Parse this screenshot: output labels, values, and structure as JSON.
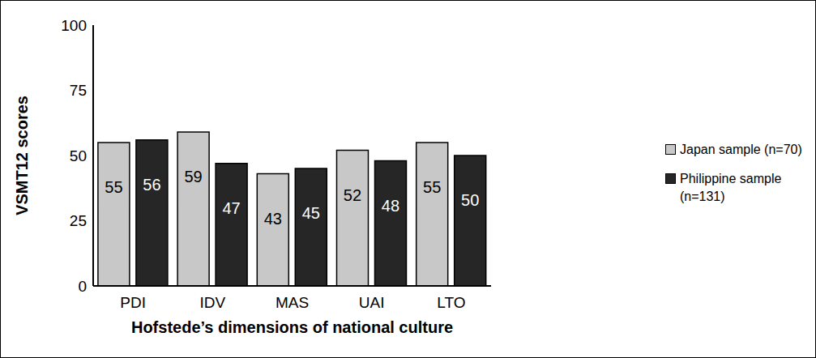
{
  "chart_data": {
    "type": "bar",
    "x_label": "Hofstede’s dimensions of national culture",
    "y_label": "VSMT12 scores",
    "categories": [
      "PDI",
      "IDV",
      "MAS",
      "UAI",
      "LTO"
    ],
    "series": [
      {
        "name": "Japan sample (n=70)",
        "color": "#c8c8c8",
        "values": [
          55,
          59,
          43,
          52,
          55
        ]
      },
      {
        "name": "Philippine sample (n=131)",
        "color": "#262626",
        "values": [
          56,
          47,
          45,
          48,
          50
        ]
      }
    ],
    "ylim": [
      0,
      100
    ],
    "yticks": [
      0,
      25,
      50,
      75,
      100
    ],
    "grid": false,
    "data_labels": true,
    "legend": "right"
  }
}
